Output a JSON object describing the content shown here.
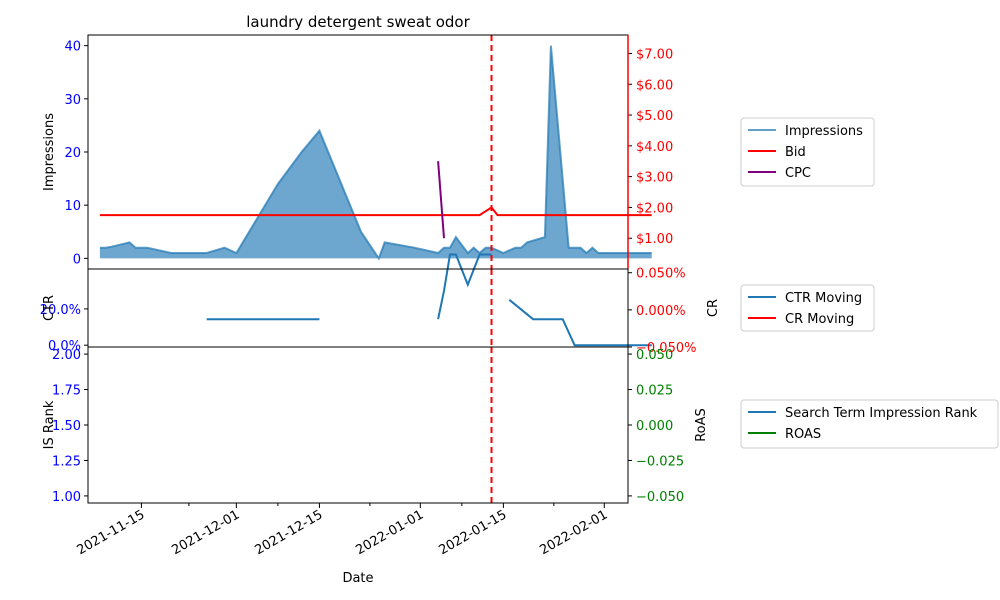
{
  "chart_data": {
    "type": "multi-panel",
    "title": "laundry detergent sweat odor",
    "xlabel": "Date",
    "x_ticks": [
      "2021-11-15",
      "2021-12-01",
      "2021-12-15",
      "2022-01-01",
      "2022-01-15",
      "2022-02-01"
    ],
    "x_range": [
      "2021-11-06",
      "2022-02-05"
    ],
    "marker_date": "2022-01-13",
    "colors": {
      "impressions": "#1f77b4",
      "bid": "#ff0000",
      "cpc": "#800080",
      "ctr": "#1f77b4",
      "cr": "#ff0000",
      "rank": "#1f77b4",
      "roas": "#008000",
      "left_ticks": "#0000ff",
      "marker": "#ff0000"
    },
    "panels": [
      {
        "id": "top",
        "left_label": "Impressions",
        "left_ylim": [
          -2,
          42
        ],
        "left_ticks": [
          "0",
          "10",
          "20",
          "30",
          "40"
        ],
        "left_tick_values": [
          0,
          10,
          20,
          30,
          40
        ],
        "right_ylim": [
          0,
          7.6
        ],
        "right_ticks": [
          "$1.00",
          "$2.00",
          "$3.00",
          "$4.00",
          "$5.00",
          "$6.00",
          "$7.00"
        ],
        "right_tick_values": [
          1,
          2,
          3,
          4,
          5,
          6,
          7
        ],
        "series": [
          {
            "name": "Impressions",
            "style": "area",
            "points": [
              [
                "2021-11-08",
                2
              ],
              [
                "2021-11-09",
                2
              ],
              [
                "2021-11-10",
                2.2
              ],
              [
                "2021-11-13",
                3
              ],
              [
                "2021-11-14",
                2
              ],
              [
                "2021-11-16",
                2
              ],
              [
                "2021-11-20",
                1
              ],
              [
                "2021-11-26",
                1
              ],
              [
                "2021-11-29",
                2
              ],
              [
                "2021-12-01",
                1
              ],
              [
                "2021-12-08",
                14
              ],
              [
                "2021-12-12",
                20
              ],
              [
                "2021-12-15",
                24
              ],
              [
                "2021-12-22",
                5
              ],
              [
                "2021-12-25",
                0
              ],
              [
                "2021-12-26",
                3
              ],
              [
                "2021-12-31",
                2
              ],
              [
                "2022-01-04",
                1
              ],
              [
                "2022-01-05",
                2
              ],
              [
                "2022-01-06",
                2
              ],
              [
                "2022-01-07",
                4
              ],
              [
                "2022-01-09",
                1
              ],
              [
                "2022-01-10",
                2
              ],
              [
                "2022-01-11",
                1
              ],
              [
                "2022-01-12",
                2
              ],
              [
                "2022-01-13",
                2
              ],
              [
                "2022-01-15",
                1
              ],
              [
                "2022-01-17",
                2
              ],
              [
                "2022-01-18",
                2
              ],
              [
                "2022-01-19",
                3
              ],
              [
                "2022-01-22",
                4
              ],
              [
                "2022-01-23",
                40
              ],
              [
                "2022-01-26",
                2
              ],
              [
                "2022-01-28",
                2
              ],
              [
                "2022-01-29",
                1
              ],
              [
                "2022-01-30",
                2
              ],
              [
                "2022-01-31",
                1
              ],
              [
                "2022-02-09",
                1
              ]
            ]
          },
          {
            "name": "Bid",
            "style": "line",
            "axis": "right",
            "points": [
              [
                "2021-11-08",
                1.75
              ],
              [
                "2022-01-11",
                1.75
              ],
              [
                "2022-01-13",
                2.0
              ],
              [
                "2022-01-14",
                1.75
              ],
              [
                "2022-02-09",
                1.75
              ]
            ]
          },
          {
            "name": "CPC",
            "style": "line",
            "axis": "right",
            "points": [
              [
                "2022-01-04",
                3.5
              ],
              [
                "2022-01-05",
                1.0
              ]
            ]
          }
        ],
        "legend": [
          "Impressions",
          "Bid",
          "CPC"
        ]
      },
      {
        "id": "middle",
        "left_label": "CTR",
        "right_label": "CR",
        "left_ylim": [
          -0.01,
          0.42
        ],
        "left_ticks": [
          "0.0%",
          "20.0%"
        ],
        "left_tick_values": [
          0,
          0.2
        ],
        "right_ylim": [
          -0.05,
          0.055
        ],
        "right_ticks": [
          "−0.050%",
          "0.000%",
          "0.050%"
        ],
        "right_tick_values": [
          -0.05,
          0,
          0.05
        ],
        "series": [
          {
            "name": "CTR Moving",
            "style": "line",
            "points": [
              [
                "2021-11-26",
                0.143
              ],
              [
                "2021-12-15",
                0.143
              ],
              null,
              [
                "2022-01-04",
                0.143
              ],
              [
                "2022-01-05",
                0.3
              ],
              [
                "2022-01-06",
                0.5
              ],
              [
                "2022-01-07",
                0.5
              ],
              [
                "2022-01-09",
                0.333
              ],
              [
                "2022-01-11",
                0.5
              ],
              [
                "2022-01-13",
                0.5
              ],
              null,
              [
                "2022-01-16",
                0.25
              ],
              [
                "2022-01-20",
                0.143
              ],
              [
                "2022-01-25",
                0.143
              ],
              [
                "2022-01-27",
                0.0
              ],
              [
                "2022-02-09",
                0.0
              ]
            ]
          },
          {
            "name": "CR Moving",
            "style": "line",
            "axis": "right",
            "points": []
          }
        ],
        "legend": [
          "CTR Moving",
          "CR Moving"
        ]
      },
      {
        "id": "bottom",
        "left_label": "IS Rank",
        "right_label": "RoAS",
        "left_ylim": [
          0.95,
          2.05
        ],
        "left_ticks": [
          "1.00",
          "1.25",
          "1.50",
          "1.75",
          "2.00"
        ],
        "left_tick_values": [
          1.0,
          1.25,
          1.5,
          1.75,
          2.0
        ],
        "right_ylim": [
          -0.055,
          0.055
        ],
        "right_ticks": [
          "−0.050",
          "−0.025",
          "0.000",
          "0.025",
          "0.050"
        ],
        "right_tick_values": [
          -0.05,
          -0.025,
          0,
          0.025,
          0.05
        ],
        "series": [
          {
            "name": "Search Term Impression Rank",
            "style": "line",
            "points": []
          },
          {
            "name": "ROAS",
            "style": "line",
            "axis": "right",
            "points": []
          }
        ],
        "legend": [
          "Search Term Impression Rank",
          "ROAS"
        ]
      }
    ]
  }
}
